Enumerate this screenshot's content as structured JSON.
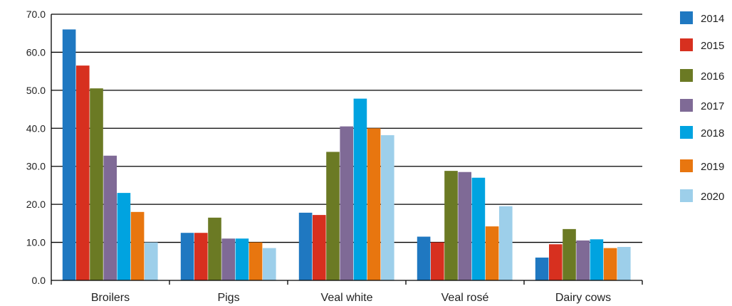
{
  "chart_data": {
    "type": "bar",
    "title": "",
    "xlabel": "",
    "ylabel": "",
    "ylim": [
      0,
      70
    ],
    "yticks": [
      "0.0",
      "10.0",
      "20.0",
      "30.0",
      "40.0",
      "50.0",
      "60.0",
      "70.0"
    ],
    "ytick_values": [
      0,
      10,
      20,
      30,
      40,
      50,
      60,
      70
    ],
    "grid": true,
    "legend_position": "right",
    "categories": [
      "Broilers",
      "Pigs",
      "Veal white",
      "Veal rosé",
      "Dairy cows"
    ],
    "series": [
      {
        "name": "2014",
        "color": "#1f78c1",
        "values": [
          66.0,
          12.5,
          17.8,
          11.5,
          6.0
        ]
      },
      {
        "name": "2015",
        "color": "#d7301f",
        "values": [
          56.5,
          12.5,
          17.2,
          10.0,
          9.5
        ]
      },
      {
        "name": "2016",
        "color": "#6b7a24",
        "values": [
          50.5,
          16.5,
          33.8,
          28.8,
          13.5
        ]
      },
      {
        "name": "2017",
        "color": "#7f6a96",
        "values": [
          32.8,
          11.0,
          40.5,
          28.5,
          10.5
        ]
      },
      {
        "name": "2018",
        "color": "#00a3e0",
        "values": [
          23.0,
          11.0,
          47.8,
          27.0,
          10.8
        ]
      },
      {
        "name": "2019",
        "color": "#e8760f",
        "values": [
          18.0,
          10.0,
          40.0,
          14.2,
          8.5
        ]
      },
      {
        "name": "2020",
        "color": "#9dcfea",
        "values": [
          10.0,
          8.5,
          38.2,
          19.5,
          8.8
        ]
      }
    ]
  }
}
